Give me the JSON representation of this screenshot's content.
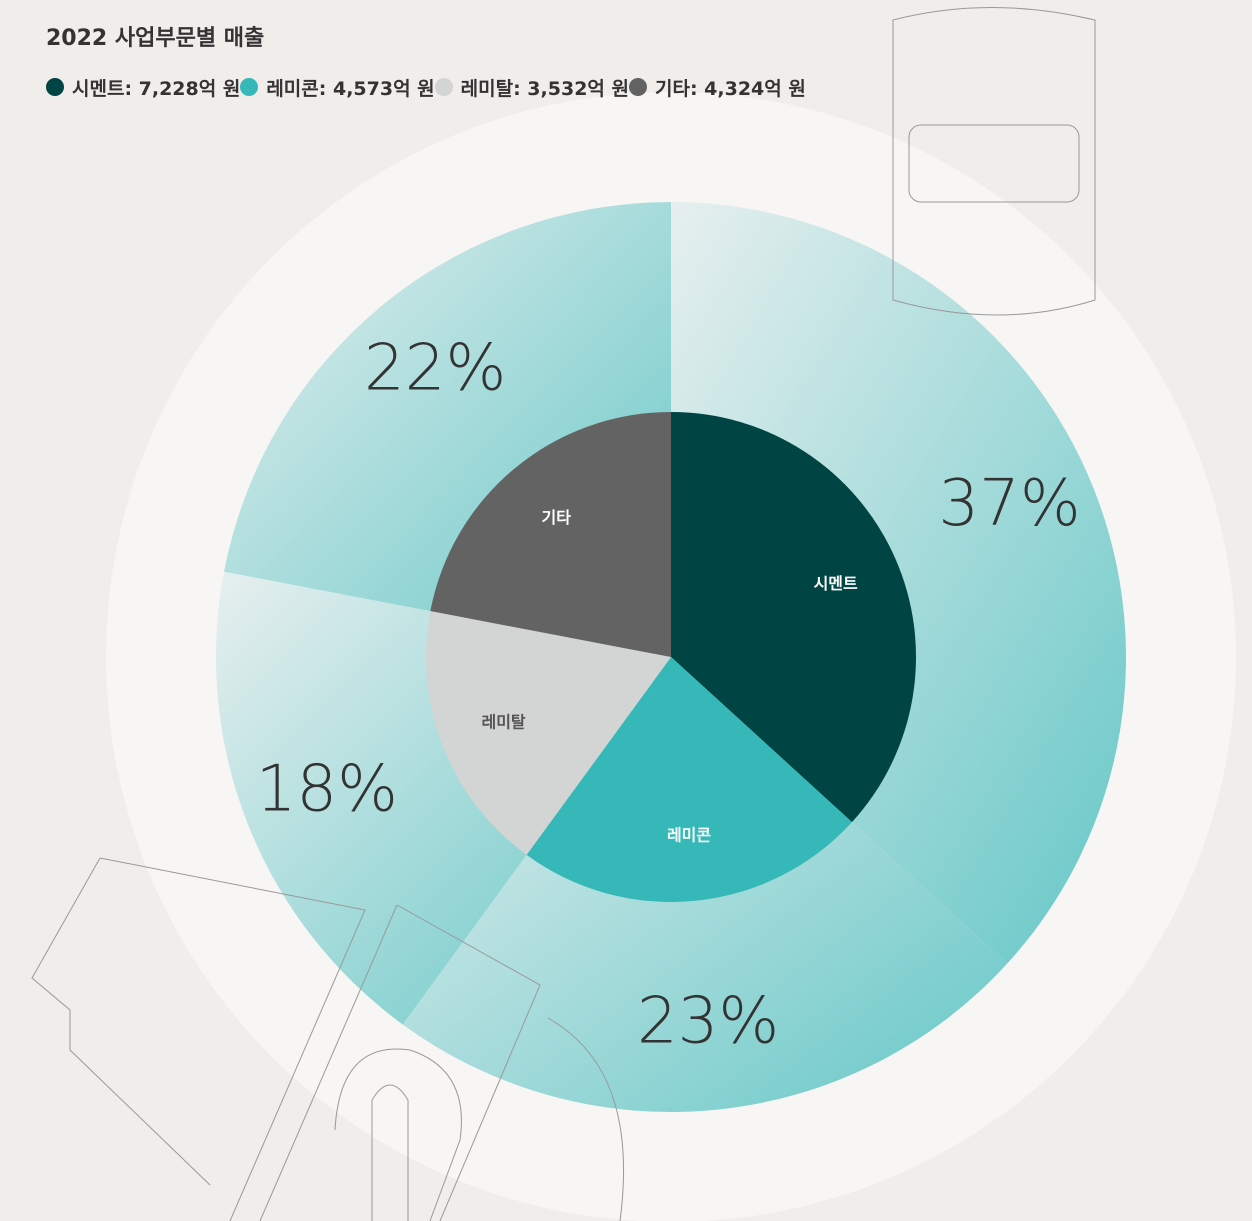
{
  "chart_data": {
    "type": "pie",
    "title": "2022 사업부문별 매출",
    "categories": [
      "시멘트",
      "레미콘",
      "레미탈",
      "기타"
    ],
    "values": [
      7228,
      4573,
      3532,
      4324
    ],
    "legend_labels": [
      "시멘트: 7,228억 원",
      "레미콘: 4,573억 원",
      "레미탈: 3,532억 원",
      "기타: 4,324억 원"
    ],
    "colors": [
      "#004443",
      "#36b8b8",
      "#d3d4d4",
      "#636363"
    ],
    "label_colors": [
      "#ffffff",
      "#ffffff",
      "#555555",
      "#ffffff"
    ],
    "shares": [
      37,
      23,
      18,
      22
    ],
    "share_labels": [
      "37%",
      "23%",
      "18%",
      "22%"
    ]
  }
}
